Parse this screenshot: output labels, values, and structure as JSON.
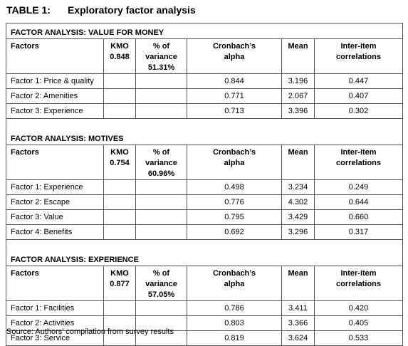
{
  "title": {
    "label": "TABLE 1:",
    "text": "Exploratory factor analysis"
  },
  "sections": [
    {
      "title": "FACTOR ANALYSIS: VALUE FOR MONEY",
      "columns": {
        "factors": "Factors",
        "kmo": "KMO",
        "variance": "% of variance",
        "alpha": "Cronbach’s alpha",
        "mean": "Mean",
        "correlations": "Inter-item correlations"
      },
      "kmo": "0.848",
      "variance": "51.31%",
      "rows": [
        {
          "factor": "Factor 1: Price & quality",
          "alpha": "0.844",
          "mean": "3.196",
          "correlations": "0.447"
        },
        {
          "factor": "Factor 2: Amenities",
          "alpha": "0.771",
          "mean": "2.067",
          "correlations": "0.407"
        },
        {
          "factor": "Factor 3: Experience",
          "alpha": "0.713",
          "mean": "3.396",
          "correlations": "0.302"
        }
      ]
    },
    {
      "title": "FACTOR ANALYSIS: MOTIVES",
      "columns": {
        "factors": "Factors",
        "kmo": "KMO",
        "variance": "% of variance",
        "alpha": "Cronbach’s alpha",
        "mean": "Mean",
        "correlations": "Inter-item correlations"
      },
      "kmo": "0.754",
      "variance": "60.96%",
      "rows": [
        {
          "factor": "Factor 1: Experience",
          "alpha": "0.498",
          "mean": "3.234",
          "correlations": "0.249"
        },
        {
          "factor": "Factor 2: Escape",
          "alpha": "0.776",
          "mean": "4.302",
          "correlations": "0.644"
        },
        {
          "factor": "Factor 3: Value",
          "alpha": "0.795",
          "mean": "3.429",
          "correlations": "0.660"
        },
        {
          "factor": "Factor 4: Benefits",
          "alpha": "0.692",
          "mean": "3.296",
          "correlations": "0.317"
        }
      ]
    },
    {
      "title": "FACTOR ANALYSIS: EXPERIENCE",
      "columns": {
        "factors": "Factors",
        "kmo": "KMO",
        "variance": "% of variance",
        "alpha": "Cronbach’s alpha",
        "mean": "Mean",
        "correlations": "Inter-item correlations"
      },
      "kmo": "0.877",
      "variance": "57.05%",
      "rows": [
        {
          "factor": "Factor 1: Facilities",
          "alpha": "0.786",
          "mean": "3.411",
          "correlations": "0.420"
        },
        {
          "factor": "Factor 2: Activities",
          "alpha": "0.803",
          "mean": "3.366",
          "correlations": "0.405"
        },
        {
          "factor": "Factor 3: Service",
          "alpha": "0.819",
          "mean": "3.624",
          "correlations": "0.533"
        }
      ]
    }
  ],
  "source": "Source: Authors’ compilation from survey results"
}
